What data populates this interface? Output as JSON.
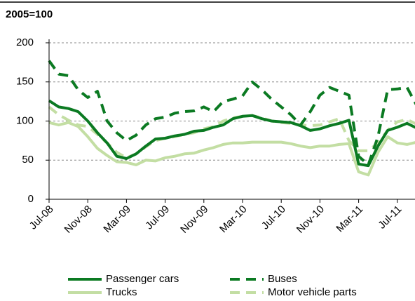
{
  "chart_data": {
    "type": "line",
    "title": "2005=100",
    "categories": [
      "Jul-08",
      null,
      null,
      null,
      "Nov-08",
      null,
      null,
      null,
      "Mar-09",
      null,
      null,
      null,
      "Jul-09",
      null,
      null,
      null,
      "Nov-09",
      null,
      null,
      null,
      "Mar-10",
      null,
      null,
      null,
      "Jul-10",
      null,
      null,
      null,
      "Nov-10",
      null,
      null,
      null,
      "Mar-11",
      null,
      null,
      null,
      "Jul-11",
      null,
      null
    ],
    "series": [
      {
        "name": "Passenger cars",
        "color": "#0b7a22",
        "dash": false,
        "values": [
          126,
          118,
          116,
          112,
          100,
          85,
          72,
          55,
          52,
          58,
          68,
          77,
          78,
          81,
          83,
          87,
          88,
          92,
          95,
          103,
          106,
          107,
          103,
          100,
          99,
          98,
          94,
          88,
          90,
          94,
          97,
          101,
          45,
          43,
          68,
          88,
          92,
          97,
          91
        ]
      },
      {
        "name": "Buses",
        "color": "#0b7a22",
        "dash": true,
        "values": [
          177,
          160,
          158,
          140,
          130,
          138,
          100,
          85,
          75,
          82,
          95,
          103,
          105,
          110,
          112,
          113,
          118,
          112,
          125,
          128,
          132,
          150,
          140,
          128,
          118,
          108,
          95,
          112,
          133,
          143,
          138,
          133,
          55,
          44,
          80,
          140,
          141,
          143,
          120
        ]
      },
      {
        "name": "Trucks",
        "color": "#c3dea3",
        "dash": false,
        "values": [
          98,
          95,
          98,
          93,
          80,
          65,
          56,
          48,
          47,
          44,
          50,
          49,
          53,
          55,
          58,
          59,
          63,
          66,
          70,
          72,
          72,
          73,
          73,
          73,
          73,
          71,
          68,
          66,
          68,
          68,
          70,
          71,
          35,
          31,
          60,
          80,
          72,
          70,
          73
        ]
      },
      {
        "name": "Motor vehicle parts",
        "color": "#c3dea3",
        "dash": true,
        "values": [
          118,
          108,
          101,
          95,
          93,
          83,
          72,
          60,
          53,
          58,
          67,
          75,
          78,
          80,
          83,
          85,
          90,
          93,
          100,
          104,
          106,
          107,
          104,
          100,
          98,
          97,
          95,
          94,
          95,
          99,
          103,
          75,
          62,
          62,
          72,
          88,
          99,
          102,
          96
        ]
      }
    ],
    "ylim": [
      0,
      200
    ],
    "yticks": [
      0,
      50,
      100,
      150,
      200
    ],
    "grid": true
  }
}
